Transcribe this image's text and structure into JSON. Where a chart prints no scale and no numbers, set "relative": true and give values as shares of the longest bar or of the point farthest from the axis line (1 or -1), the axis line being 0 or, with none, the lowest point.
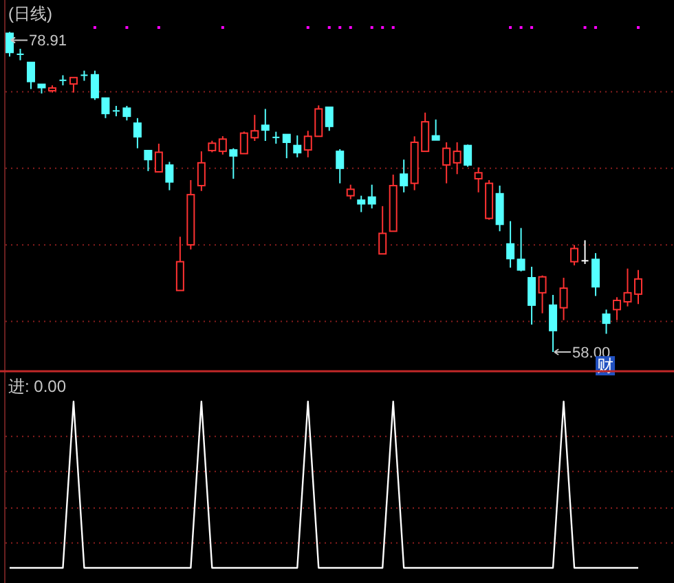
{
  "chart_data": [
    {
      "type": "candlestick",
      "title": "(日线)",
      "ref_lines": [
        {
          "axis": "y",
          "value": 75,
          "color": "#8a1e1e",
          "line_style": "dotted"
        },
        {
          "axis": "y",
          "value": 70,
          "color": "#8a1e1e",
          "line_style": "dotted"
        },
        {
          "axis": "y",
          "value": 65,
          "color": "#8a1e1e",
          "line_style": "dotted"
        },
        {
          "axis": "y",
          "value": 60,
          "color": "#8a1e1e",
          "line_style": "dotted"
        }
      ],
      "categories": [
        null,
        null,
        null,
        null,
        null,
        null,
        null,
        null,
        null,
        null,
        null,
        null,
        null,
        null,
        null,
        null,
        null,
        null,
        null,
        null,
        null,
        null,
        null,
        null,
        null,
        null,
        null,
        null,
        null,
        null,
        null,
        null,
        null,
        null,
        null,
        null,
        null,
        null,
        null,
        null,
        null,
        null,
        null,
        null,
        null,
        null,
        null,
        null,
        null,
        null,
        null,
        null,
        null,
        null,
        null,
        null,
        null,
        null,
        null,
        null
      ],
      "ohlc": [
        [
          78.82,
          78.91,
          77.3,
          77.57
        ],
        [
          77.45,
          77.81,
          77.06,
          77.4
        ],
        [
          76.92,
          76.95,
          75.18,
          75.67
        ],
        [
          75.49,
          75.49,
          74.89,
          75.27
        ],
        [
          75.07,
          75.42,
          74.95,
          75.25
        ],
        [
          75.75,
          76.08,
          75.42,
          75.72
        ],
        [
          75.51,
          75.96,
          74.95,
          75.93
        ],
        [
          76.08,
          76.38,
          75.72,
          76.05
        ],
        [
          76.11,
          76.38,
          74.47,
          74.62
        ],
        [
          74.59,
          74.59,
          73.28,
          73.58
        ],
        [
          73.75,
          74.08,
          73.4,
          73.71
        ],
        [
          73.93,
          74.08,
          73.13,
          73.4
        ],
        [
          72.95,
          73.28,
          71.31,
          72.06
        ],
        [
          71.16,
          71.16,
          69.82,
          70.57
        ],
        [
          69.77,
          71.61,
          69.77,
          71.05
        ],
        [
          70.21,
          70.42,
          68.57,
          69.11
        ],
        [
          62.02,
          65.53,
          62.02,
          63.9
        ],
        [
          65.0,
          69.23,
          64.7,
          68.28
        ],
        [
          68.87,
          71.11,
          68.52,
          70.36
        ],
        [
          71.16,
          71.8,
          71.05,
          71.64
        ],
        [
          71.11,
          72.1,
          70.9,
          71.91
        ],
        [
          71.2,
          71.31,
          69.32,
          70.81
        ],
        [
          70.96,
          72.4,
          70.96,
          72.3
        ],
        [
          72.0,
          73.49,
          71.79,
          72.45
        ],
        [
          72.81,
          73.88,
          71.79,
          72.5
        ],
        [
          72.02,
          72.39,
          71.61,
          72.0
        ],
        [
          72.21,
          72.21,
          70.66,
          71.7
        ],
        [
          71.49,
          72.15,
          70.72,
          71.02
        ],
        [
          71.2,
          72.45,
          70.72,
          72.09
        ],
        [
          72.09,
          74.11,
          72.09,
          73.88
        ],
        [
          73.99,
          74.0,
          72.45,
          72.74
        ],
        [
          71.11,
          71.25,
          69.02,
          70.0
        ],
        [
          68.21,
          68.93,
          67.98,
          68.63
        ],
        [
          67.92,
          68.21,
          67.14,
          67.68
        ],
        [
          68.12,
          68.93,
          67.38,
          67.68
        ],
        [
          64.41,
          67.53,
          64.41,
          65.75
        ],
        [
          65.89,
          69.59,
          65.89,
          68.87
        ],
        [
          69.62,
          70.57,
          68.43,
          68.87
        ],
        [
          69.02,
          72.09,
          68.57,
          71.7
        ],
        [
          71.11,
          73.64,
          71.11,
          73.04
        ],
        [
          72.12,
          73.19,
          71.85,
          71.85
        ],
        [
          70.22,
          71.7,
          69.02,
          71.31
        ],
        [
          70.36,
          71.7,
          69.62,
          71.11
        ],
        [
          71.49,
          71.55,
          70.1,
          70.22
        ],
        [
          69.32,
          70.06,
          68.43,
          69.71
        ],
        [
          66.73,
          69.23,
          66.64,
          69.02
        ],
        [
          68.34,
          68.87,
          65.89,
          66.34
        ],
        [
          65.06,
          66.55,
          63.51,
          64.1
        ],
        [
          64.05,
          66.1,
          63.27,
          63.36
        ],
        [
          62.85,
          63.57,
          59.79,
          61.06
        ],
        [
          61.87,
          63.0,
          60.53,
          62.91
        ],
        [
          61.06,
          61.73,
          58.0,
          59.4
        ],
        [
          60.89,
          62.85,
          60.08,
          62.17
        ],
        [
          63.9,
          64.99,
          63.66,
          64.76
        ],
        [
          63.96,
          65.3,
          63.75,
          63.96
        ],
        [
          64.05,
          64.46,
          61.66,
          62.26
        ],
        [
          60.47,
          60.77,
          59.19,
          59.88
        ],
        [
          60.77,
          61.58,
          60.08,
          61.37
        ],
        [
          61.28,
          63.45,
          60.98,
          61.87
        ],
        [
          61.78,
          63.36,
          61.13,
          62.77
        ]
      ],
      "colors": [
        "#54ffff",
        "#54ffff",
        "#54ffff",
        "#54ffff",
        "#ff3232",
        "#54ffff",
        "#ff3232",
        "#54ffff",
        "#54ffff",
        "#54ffff",
        "#54ffff",
        "#54ffff",
        "#54ffff",
        "#54ffff",
        "#ff3232",
        "#54ffff",
        "#ff3232",
        "#ff3232",
        "#ff3232",
        "#ff3232",
        "#ff3232",
        "#54ffff",
        "#ff3232",
        "#ff3232",
        "#54ffff",
        "#54ffff",
        "#54ffff",
        "#54ffff",
        "#ff3232",
        "#ff3232",
        "#54ffff",
        "#54ffff",
        "#ff3232",
        "#54ffff",
        "#54ffff",
        "#ff3232",
        "#ff3232",
        "#54ffff",
        "#ff3232",
        "#ff3232",
        "#54ffff",
        "#ff3232",
        "#ff3232",
        "#54ffff",
        "#ff3232",
        "#ff3232",
        "#54ffff",
        "#54ffff",
        "#54ffff",
        "#54ffff",
        "#ff3232",
        "#54ffff",
        "#ff3232",
        "#ff3232",
        "#ffffff",
        "#54ffff",
        "#54ffff",
        "#ff3232",
        "#ff3232",
        "#ff3232"
      ],
      "series": [
        {
          "type": "scatter",
          "color": "#ff00ff",
          "values": [
            null,
            null,
            null,
            null,
            null,
            null,
            null,
            null,
            79.2,
            null,
            null,
            79.2,
            null,
            null,
            79.2,
            null,
            null,
            null,
            null,
            null,
            79.2,
            null,
            null,
            null,
            null,
            null,
            null,
            null,
            79.2,
            null,
            79.2,
            79.2,
            79.2,
            null,
            79.2,
            79.2,
            79.2,
            null,
            null,
            null,
            null,
            null,
            null,
            null,
            null,
            null,
            null,
            79.2,
            79.2,
            79.2,
            null,
            null,
            null,
            null,
            79.2,
            79.2,
            null,
            null,
            null,
            79.2
          ]
        }
      ],
      "annotations": [
        "78.91",
        "58.00",
        "财"
      ]
    },
    {
      "type": "line",
      "title": "进: 0.00",
      "relative": true,
      "ref_lines": [
        {
          "axis": "y",
          "value": 0.79,
          "color": "#8a1e1e",
          "line_style": "dotted"
        },
        {
          "axis": "y",
          "value": 0.58,
          "color": "#8a1e1e",
          "line_style": "dotted"
        },
        {
          "axis": "y",
          "value": 0.36,
          "color": "#8a1e1e",
          "line_style": "dotted"
        },
        {
          "axis": "y",
          "value": 0.15,
          "color": "#8a1e1e",
          "line_style": "dotted"
        }
      ],
      "categories": [
        null,
        null,
        null,
        null,
        null,
        null,
        null,
        null,
        null,
        null,
        null,
        null,
        null,
        null,
        null,
        null,
        null,
        null,
        null,
        null,
        null,
        null,
        null,
        null,
        null,
        null,
        null,
        null,
        null,
        null,
        null,
        null,
        null,
        null,
        null,
        null,
        null,
        null,
        null,
        null,
        null,
        null,
        null,
        null,
        null,
        null,
        null,
        null,
        null,
        null,
        null,
        null,
        null,
        null,
        null,
        null,
        null,
        null,
        null,
        null
      ],
      "series": [
        {
          "color": "#ffffff",
          "values": [
            0,
            0,
            0,
            0,
            0,
            0,
            1,
            0,
            0,
            0,
            0,
            0,
            0,
            0,
            0,
            0,
            0,
            0,
            1,
            0,
            0,
            0,
            0,
            0,
            0,
            0,
            0,
            0,
            1,
            0,
            0,
            0,
            0,
            0,
            0,
            0,
            1,
            0,
            0,
            0,
            0,
            0,
            0,
            0,
            0,
            0,
            0,
            0,
            0,
            0,
            0,
            0,
            1,
            0,
            0,
            0,
            0,
            0,
            0,
            0
          ]
        }
      ]
    }
  ]
}
